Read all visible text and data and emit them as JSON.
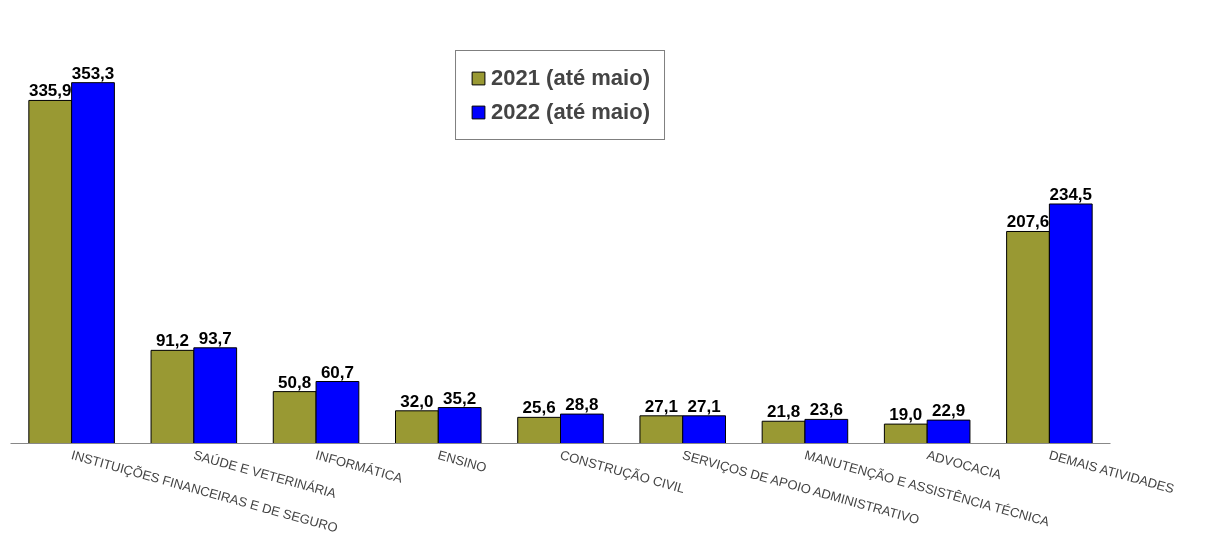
{
  "chart_data": {
    "type": "bar",
    "categories": [
      "INSTITUIÇÕES FINANCEIRAS E DE SEGURO",
      "SAÚDE E VETERINÁRIA",
      "INFORMÁTICA",
      "ENSINO",
      "CONSTRUÇÃO CIVIL",
      "SERVIÇOS DE APOIO ADMINISTRATIVO",
      "MANUTENÇÃO E ASSISTÊNCIA TÉCNICA",
      "ADVOCACIA",
      "DEMAIS ATIVIDADES"
    ],
    "series": [
      {
        "name": "2021 (até maio)",
        "color": "#999933",
        "values": [
          335.9,
          91.2,
          50.8,
          32.0,
          25.6,
          27.1,
          21.8,
          19.0,
          207.6
        ],
        "value_labels": [
          "335,9",
          "91,2",
          "50,8",
          "32,0",
          "25,6",
          "27,1",
          "21,8",
          "19,0",
          "207,6"
        ]
      },
      {
        "name": "2022 (até maio)",
        "color": "#0000ff",
        "values": [
          353.3,
          93.7,
          60.7,
          35.2,
          28.8,
          27.1,
          23.6,
          22.9,
          234.5
        ],
        "value_labels": [
          "353,3",
          "93,7",
          "60,7",
          "35,2",
          "28,8",
          "27,1",
          "23,6",
          "22,9",
          "234,5"
        ]
      }
    ],
    "legend": "top",
    "grid": false
  }
}
